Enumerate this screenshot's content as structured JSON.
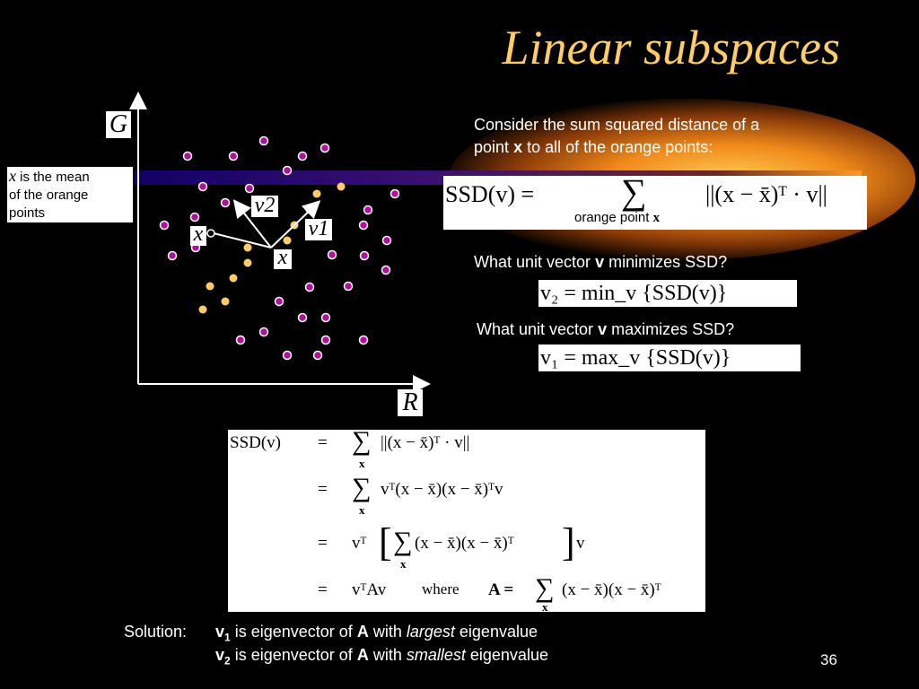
{
  "title": "Linear subspaces",
  "slide_number": "36",
  "plot": {
    "y_label": "G",
    "x_label": "R",
    "mean_label": "x",
    "x_point_label": "x",
    "v1_label": "v1",
    "v2_label": "v2",
    "purple_color": "#b0109c",
    "orange_color": "#ffcc66"
  },
  "mean_box": {
    "var": "x",
    "text1": "is the mean",
    "text2": "of the orange",
    "text3": "points"
  },
  "intro": {
    "line1": "Consider the sum squared distance of a",
    "line2_pre": "point",
    "line2_bold": "x",
    "line2_post": "to all of the orange points:"
  },
  "ssd_box": {
    "lhs": "SSD(v) =",
    "sum": "∑",
    "under": "orange point",
    "under_var": "x",
    "rhs": "||(x − x̄)ᵀ · v||"
  },
  "q1": {
    "pre": "What unit vector",
    "bold": "v",
    "post": "minimizes SSD?"
  },
  "q1_box": {
    "text": "v₂ = min_v {SSD(v)}"
  },
  "q2": {
    "pre": "What unit vector",
    "bold": "v",
    "post": "maximizes SSD?"
  },
  "q2_box": {
    "text": "v₁ = max_v {SSD(v)}"
  },
  "derivation": {
    "lhs": "SSD(v)",
    "eq": "=",
    "sum": "∑",
    "subx": "x",
    "row1": "||(x − x̄)ᵀ · v||",
    "row2": "vᵀ(x − x̄)(x − x̄)ᵀv",
    "row3_pre": "vᵀ",
    "row3_mid": "(x − x̄)(x − x̄)ᵀ",
    "row3_post": "v",
    "row4_pre": "vᵀAv",
    "row4_where": "where",
    "row4_A": "A =",
    "row4_post": "(x − x̄)(x − x̄)ᵀ"
  },
  "solution": {
    "label": "Solution:",
    "l1_v": "v",
    "l1_sub": "1",
    "l1_a": "is eigenvector of",
    "l1_A": "A",
    "l1_b": "with",
    "l1_it": "largest",
    "l1_c": "eigenvalue",
    "l2_v": "v",
    "l2_sub": "2",
    "l2_a": "is eigenvector of",
    "l2_A": "A",
    "l2_b": "with",
    "l2_it": "smallest",
    "l2_c": "eigenvalue"
  }
}
